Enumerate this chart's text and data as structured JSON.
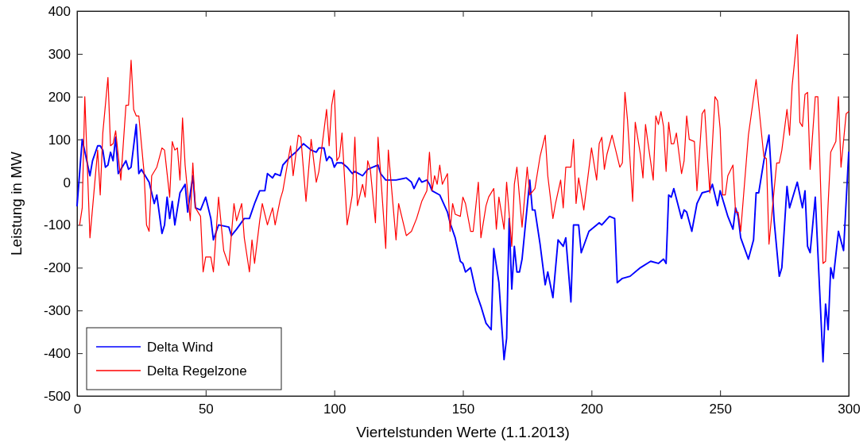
{
  "chart_data": {
    "type": "line",
    "xlabel": "Viertelstunden Werte (1.1.2013)",
    "ylabel": "Leistung in MW",
    "xlim": [
      0,
      300
    ],
    "ylim": [
      -500,
      400
    ],
    "xticks": [
      0,
      50,
      100,
      150,
      200,
      250,
      300
    ],
    "yticks": [
      -500,
      -400,
      -300,
      -200,
      -100,
      0,
      100,
      200,
      300,
      400
    ],
    "legend": "bottom left",
    "grid": false,
    "marker": "none",
    "line_style": "solid",
    "series": [
      {
        "name": "Delta Wind",
        "color": "#0000ff",
        "x": [
          0,
          2,
          5,
          6,
          8,
          9,
          10,
          11,
          12,
          13,
          14,
          15,
          16,
          17,
          19,
          20,
          21,
          23,
          24,
          25,
          28,
          30,
          31,
          33,
          34,
          35,
          36,
          37,
          38,
          40,
          42,
          43,
          45,
          46,
          48,
          50,
          52,
          53,
          55,
          59,
          60,
          62,
          65,
          67,
          69,
          71,
          73,
          74,
          76,
          77,
          79,
          80,
          83,
          85,
          88,
          91,
          93,
          94,
          96,
          97,
          98,
          99,
          100,
          101,
          103,
          105,
          107,
          108,
          111,
          113,
          115,
          117,
          118,
          120,
          124,
          128,
          130,
          131,
          133,
          134,
          136,
          137,
          138,
          141,
          144,
          145,
          147,
          149,
          150,
          151,
          152,
          153,
          155,
          157,
          159,
          161,
          162,
          164,
          166,
          167,
          168,
          169,
          170,
          171,
          172,
          173,
          176,
          177,
          178,
          180,
          182,
          183,
          185,
          187,
          189,
          190,
          192,
          193,
          195,
          196,
          199,
          202,
          203,
          204,
          207,
          209,
          210,
          212,
          215,
          219,
          223,
          226,
          228,
          229,
          230,
          231,
          232,
          235,
          236,
          237,
          239,
          241,
          243,
          246,
          247,
          249,
          250,
          252,
          253,
          255,
          256,
          257,
          258,
          261,
          263,
          264,
          265,
          267,
          269,
          271,
          273,
          274,
          276,
          277,
          280,
          282,
          283,
          284,
          285,
          287,
          290,
          291,
          292,
          293,
          294,
          296,
          298,
          300
        ],
        "values": [
          -55,
          100,
          15,
          50,
          85,
          85,
          75,
          35,
          40,
          70,
          50,
          105,
          20,
          30,
          50,
          30,
          35,
          135,
          20,
          30,
          0,
          -50,
          -30,
          -120,
          -100,
          -35,
          -85,
          -45,
          -100,
          -25,
          -5,
          -70,
          15,
          -60,
          -65,
          -35,
          -85,
          -135,
          -100,
          -105,
          -125,
          -110,
          -85,
          -85,
          -50,
          -20,
          -20,
          20,
          10,
          20,
          15,
          40,
          60,
          70,
          90,
          75,
          70,
          80,
          80,
          50,
          60,
          55,
          35,
          45,
          45,
          35,
          20,
          25,
          15,
          30,
          35,
          40,
          20,
          5,
          5,
          10,
          0,
          -15,
          10,
          0,
          5,
          -5,
          -20,
          -30,
          -70,
          -95,
          -130,
          -185,
          -190,
          -210,
          -205,
          -200,
          -255,
          -290,
          -330,
          -345,
          -155,
          -235,
          -415,
          -365,
          -85,
          -250,
          -150,
          -210,
          -210,
          -180,
          5,
          -65,
          -65,
          -145,
          -240,
          -210,
          -270,
          -135,
          -150,
          -130,
          -280,
          -100,
          -100,
          -165,
          -115,
          -100,
          -95,
          -100,
          -80,
          -85,
          -235,
          -225,
          -220,
          -200,
          -185,
          -190,
          -180,
          -190,
          -30,
          -35,
          -15,
          -85,
          -65,
          -70,
          -115,
          -50,
          -25,
          -20,
          -5,
          -55,
          -20,
          -60,
          -80,
          -110,
          -60,
          -80,
          -130,
          -180,
          -135,
          -25,
          -25,
          50,
          110,
          -90,
          -220,
          -200,
          -10,
          -60,
          0,
          -60,
          -20,
          -150,
          -165,
          -35,
          -420,
          -285,
          -345,
          -200,
          -225,
          -115,
          -160,
          70
        ]
      },
      {
        "name": "Delta Regelzone",
        "color": "#ff0000",
        "x": [
          1,
          2,
          3,
          5,
          8,
          9,
          10,
          12,
          13,
          14,
          15,
          17,
          19,
          20,
          21,
          22,
          23,
          24,
          26,
          27,
          28,
          29,
          31,
          33,
          34,
          36,
          37,
          38,
          39,
          40,
          41,
          42,
          44,
          45,
          46,
          48,
          49,
          50,
          52,
          53,
          55,
          57,
          59,
          61,
          62,
          64,
          65,
          67,
          68,
          69,
          71,
          72,
          74,
          76,
          77,
          79,
          80,
          83,
          84,
          86,
          87,
          89,
          91,
          93,
          94,
          97,
          98,
          99,
          100,
          101,
          102,
          103,
          105,
          107,
          108,
          109,
          111,
          112,
          113,
          114,
          116,
          117,
          118,
          120,
          121,
          124,
          125,
          128,
          130,
          132,
          134,
          136,
          137,
          138,
          139,
          140,
          141,
          142,
          144,
          145,
          146,
          147,
          149,
          150,
          151,
          153,
          154,
          156,
          157,
          159,
          160,
          162,
          163,
          164,
          166,
          167,
          169,
          170,
          171,
          173,
          175,
          176,
          178,
          180,
          182,
          183,
          185,
          186,
          188,
          189,
          190,
          192,
          193,
          194,
          195,
          197,
          200,
          202,
          203,
          204,
          205,
          206,
          208,
          211,
          212,
          213,
          214,
          216,
          217,
          219,
          220,
          221,
          222,
          224,
          225,
          226,
          227,
          228,
          229,
          230,
          231,
          232,
          233,
          235,
          236,
          237,
          238,
          240,
          241,
          243,
          244,
          245,
          246,
          248,
          249,
          250,
          251,
          252,
          253,
          255,
          256,
          257,
          258,
          261,
          264,
          267,
          268,
          269,
          272,
          273,
          274,
          276,
          277,
          278,
          280,
          281,
          282,
          283,
          284,
          285,
          287,
          288,
          290,
          291,
          292,
          293,
          295,
          296,
          297,
          299,
          300
        ],
        "values": [
          -100,
          -60,
          200,
          -130,
          75,
          -30,
          115,
          245,
          85,
          90,
          120,
          5,
          180,
          180,
          285,
          170,
          155,
          155,
          25,
          -100,
          -115,
          15,
          35,
          80,
          75,
          -35,
          95,
          75,
          80,
          5,
          150,
          40,
          -90,
          45,
          -60,
          -80,
          -210,
          -175,
          -175,
          -210,
          -35,
          -160,
          -195,
          -50,
          -90,
          -50,
          -130,
          -210,
          -135,
          -190,
          -90,
          -50,
          -100,
          -60,
          -100,
          -40,
          -20,
          85,
          15,
          110,
          105,
          -45,
          100,
          0,
          25,
          170,
          85,
          180,
          215,
          50,
          60,
          115,
          -100,
          -30,
          105,
          -55,
          -5,
          -35,
          50,
          30,
          -95,
          105,
          20,
          -155,
          75,
          -135,
          -50,
          -125,
          -115,
          -85,
          -45,
          -20,
          70,
          -20,
          15,
          -5,
          40,
          -5,
          20,
          -115,
          -50,
          -75,
          -80,
          -35,
          -50,
          -115,
          -115,
          0,
          -130,
          -55,
          -35,
          -15,
          -110,
          -35,
          -110,
          0,
          -150,
          -5,
          35,
          -105,
          35,
          -30,
          -15,
          60,
          110,
          15,
          -85,
          -50,
          5,
          -60,
          35,
          35,
          100,
          -50,
          10,
          -65,
          80,
          5,
          90,
          105,
          30,
          65,
          110,
          35,
          45,
          210,
          145,
          -45,
          140,
          65,
          10,
          135,
          90,
          5,
          155,
          135,
          165,
          130,
          25,
          140,
          90,
          90,
          115,
          20,
          50,
          155,
          100,
          95,
          -20,
          160,
          170,
          70,
          -25,
          200,
          190,
          125,
          -30,
          -30,
          15,
          40,
          -70,
          -70,
          -115,
          110,
          240,
          60,
          55,
          -145,
          45,
          45,
          75,
          170,
          110,
          225,
          345,
          140,
          130,
          205,
          210,
          30,
          200,
          200,
          -190,
          -185,
          -50,
          70,
          95,
          200,
          35,
          160,
          165
        ]
      }
    ]
  }
}
